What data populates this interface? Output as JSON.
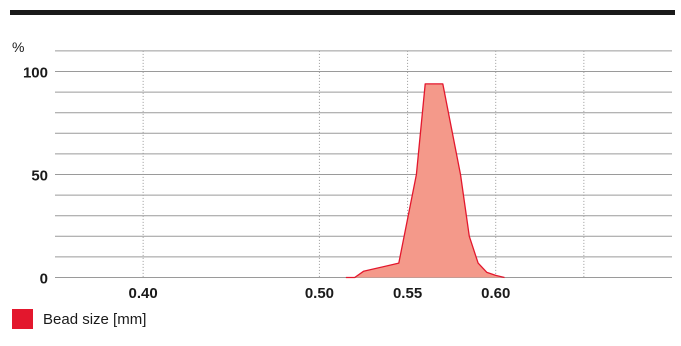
{
  "colors": {
    "line": "#e3172d",
    "fill": "#f4998a",
    "legend_swatch": "#e3172d",
    "grid": "#9a9a9a",
    "text": "#1a1a1a"
  },
  "chart_data": {
    "type": "area",
    "title": "",
    "xlabel": "",
    "ylabel": "%",
    "xlim": [
      0.35,
      0.7
    ],
    "ylim": [
      0,
      100
    ],
    "x_ticks": [
      {
        "value": 0.4,
        "label": "0.40"
      },
      {
        "value": 0.5,
        "label": "0.50"
      },
      {
        "value": 0.55,
        "label": "0.55"
      },
      {
        "value": 0.6,
        "label": "0.60"
      }
    ],
    "extra_vertical_gridlines": [
      0.65
    ],
    "y_ticks": [
      {
        "value": 0,
        "label": "0"
      },
      {
        "value": 50,
        "label": "50"
      },
      {
        "value": 100,
        "label": "100"
      }
    ],
    "horizontal_gridlines": [
      0,
      10,
      20,
      30,
      40,
      50,
      60,
      70,
      80,
      90,
      100,
      110
    ],
    "grid": true,
    "legend_position": "bottom-left",
    "series": [
      {
        "name": "Bead size [mm]",
        "x": [
          0.515,
          0.52,
          0.525,
          0.545,
          0.555,
          0.56,
          0.57,
          0.58,
          0.585,
          0.59,
          0.595,
          0.6,
          0.605
        ],
        "y": [
          0,
          0,
          3,
          7,
          50,
          94,
          94,
          50,
          20,
          7,
          2.5,
          1,
          0
        ]
      }
    ]
  }
}
